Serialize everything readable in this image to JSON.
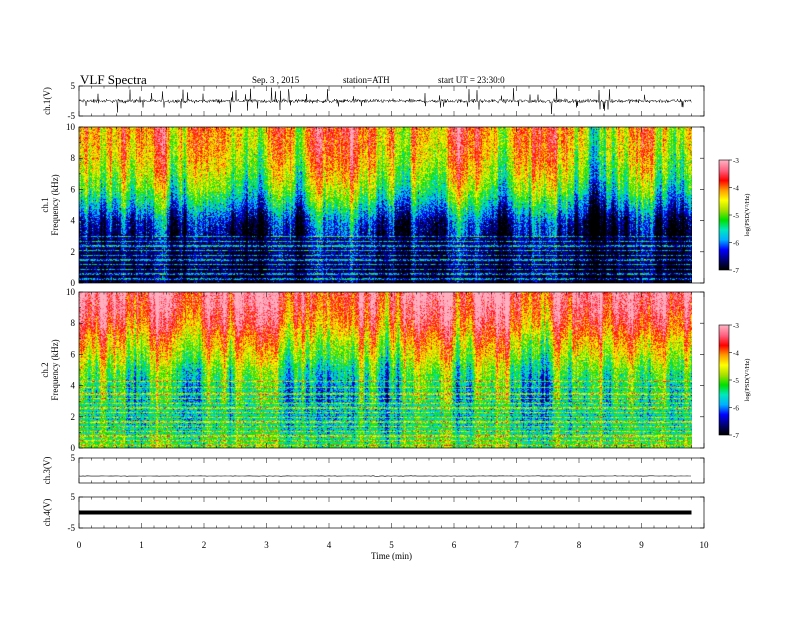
{
  "header": {
    "title": "VLF Spectra",
    "date": "Sep. 3 , 2015",
    "station": "station=ATH",
    "start": "start UT = 23:30:0"
  },
  "colors": {
    "colormap": [
      "#000000",
      "#00007a",
      "#0000ff",
      "#00b0ff",
      "#00e8c0",
      "#00e000",
      "#a8e000",
      "#ffff00",
      "#ff9c00",
      "#ff0000",
      "#ff6080",
      "#ffb0c0"
    ],
    "waveform": "#000000",
    "background": "#ffffff"
  },
  "chart_data": [
    {
      "type": "line",
      "panel": "ch.1 waveform",
      "ylabel": "ch.1(V)",
      "ylim": [
        -5,
        5
      ],
      "yticks": [
        "5",
        "-5"
      ],
      "xlim": [
        0,
        10
      ],
      "description_of_values": "noisy voltage trace centered near 0 V with frequent spikes of roughly ±3 V",
      "x": [
        0,
        1,
        2,
        3,
        4,
        5,
        6,
        7,
        8,
        9,
        9.8
      ],
      "y": [
        0,
        0,
        0,
        0,
        0,
        0,
        0,
        0,
        0,
        0,
        0
      ]
    },
    {
      "type": "heatmap",
      "panel": "ch.1 spectrogram",
      "ylabel": "Frequency (kHz)",
      "channel_label": "ch.1",
      "ylim": [
        0,
        10
      ],
      "yticks": [
        "0",
        "2",
        "4",
        "6",
        "8",
        "10"
      ],
      "xlim": [
        0,
        10
      ],
      "data_extent_min": 9.8,
      "colorbar": {
        "label": "log(PSD(V²/Hz)",
        "range": [
          -7,
          -3
        ],
        "ticks": [
          "-3",
          "-4",
          "-5",
          "-6",
          "-7"
        ]
      },
      "band_profile_khz": [
        0,
        1,
        2,
        3,
        4,
        5,
        6,
        7,
        8,
        9,
        10
      ],
      "band_logpsd": [
        -6.9,
        -6.8,
        -6.7,
        -6.6,
        -6.3,
        -5.6,
        -5.0,
        -4.6,
        -4.3,
        -4.1,
        -4.0
      ],
      "discrete_lines_khz": [
        0.3,
        0.6,
        0.9,
        1.2,
        1.5,
        1.8,
        2.1,
        2.4,
        2.7,
        3.0
      ]
    },
    {
      "type": "heatmap",
      "panel": "ch.2 spectrogram",
      "ylabel": "Frequency (kHz)",
      "channel_label": "ch.2",
      "ylim": [
        0,
        10
      ],
      "yticks": [
        "0",
        "2",
        "4",
        "6",
        "8",
        "10"
      ],
      "xlim": [
        0,
        10
      ],
      "data_extent_min": 9.8,
      "colorbar": {
        "label": "log(PSD(V²/Hz)",
        "range": [
          -7,
          -3
        ],
        "ticks": [
          "-3",
          "-4",
          "-5",
          "-6",
          "-7"
        ]
      },
      "band_profile_khz": [
        0,
        1,
        2,
        3,
        4,
        5,
        6,
        7,
        8,
        9,
        10
      ],
      "band_logpsd": [
        -5.0,
        -5.4,
        -5.6,
        -5.5,
        -5.4,
        -5.1,
        -4.6,
        -4.2,
        -3.7,
        -3.4,
        -3.2
      ],
      "discrete_lines_khz": [
        0.2,
        0.5,
        0.8,
        1.1,
        1.4,
        1.7,
        2.0,
        2.3,
        2.6,
        2.9,
        3.2,
        3.5,
        3.9,
        4.3
      ]
    },
    {
      "type": "line",
      "panel": "ch.3 waveform",
      "ylabel": "ch.3(V)",
      "ylim": [
        -5,
        5
      ],
      "yticks": [
        "5"
      ],
      "xlim": [
        0,
        10
      ],
      "x": [
        0,
        9.8
      ],
      "y": [
        -2.2,
        -2.2
      ]
    },
    {
      "type": "line",
      "panel": "ch.4 waveform",
      "ylabel": "ch.4(V)",
      "ylim": [
        -5,
        5
      ],
      "yticks": [
        "5",
        "-5"
      ],
      "xlim": [
        0,
        10
      ],
      "x": [
        0,
        9.8
      ],
      "y": [
        0,
        0
      ]
    }
  ],
  "xaxis": {
    "label": "Time (min)",
    "ticks": [
      "0",
      "1",
      "2",
      "3",
      "4",
      "5",
      "6",
      "7",
      "8",
      "9",
      "10"
    ],
    "range": [
      0,
      10
    ]
  }
}
